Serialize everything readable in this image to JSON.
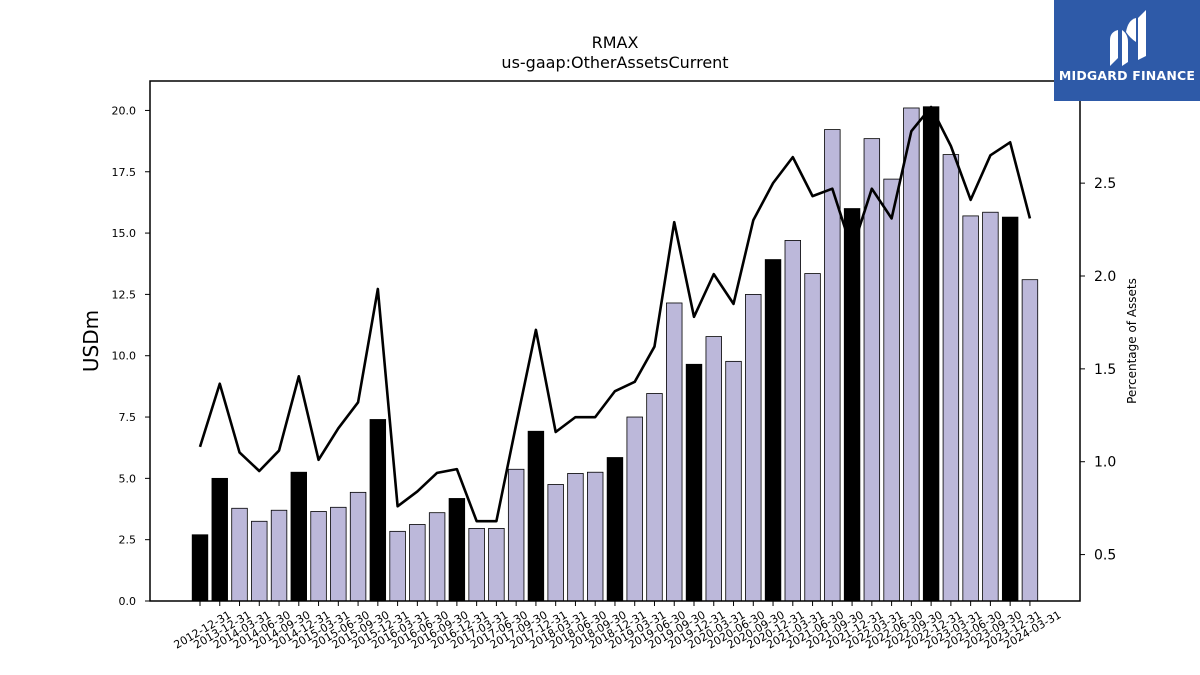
{
  "logo": {
    "text": "MIDGARD FINANCE"
  },
  "chart_data": {
    "type": "bar",
    "title": "RMAX",
    "subtitle": "us-gaap:OtherAssetsCurrent",
    "ylabel": "USDm",
    "y2label": "Percentage of Assets",
    "ylim": [
      0,
      21.2
    ],
    "y2lim": [
      0.25,
      3.05
    ],
    "yticks": [
      "0.0",
      "2.5",
      "5.0",
      "7.5",
      "10.0",
      "12.5",
      "15.0",
      "17.5",
      "20.0"
    ],
    "y2ticks": [
      "0.5",
      "1.0",
      "1.5",
      "2.0",
      "2.5"
    ],
    "categories": [
      "2012-12-31",
      "2013-12-31",
      "2014-03-31",
      "2014-06-30",
      "2014-09-30",
      "2014-12-31",
      "2015-03-31",
      "2015-06-30",
      "2015-09-30",
      "2015-12-31",
      "2016-03-31",
      "2016-06-30",
      "2016-09-30",
      "2016-12-31",
      "2017-03-31",
      "2017-06-30",
      "2017-09-30",
      "2017-12-31",
      "2018-03-31",
      "2018-06-30",
      "2018-09-30",
      "2018-12-31",
      "2019-03-31",
      "2019-06-30",
      "2019-09-30",
      "2019-12-31",
      "2020-03-31",
      "2020-06-30",
      "2020-09-30",
      "2020-12-31",
      "2021-03-31",
      "2021-06-30",
      "2021-09-30",
      "2021-12-31",
      "2022-03-31",
      "2022-06-30",
      "2022-09-30",
      "2022-12-31",
      "2023-03-31",
      "2023-06-30",
      "2023-09-30",
      "2023-12-31",
      "2024-03-31"
    ],
    "series": [
      {
        "type": "bar",
        "axis": "left",
        "values": [
          2.7,
          5.0,
          3.78,
          3.25,
          3.7,
          5.25,
          3.65,
          3.82,
          4.43,
          7.4,
          2.84,
          3.12,
          3.6,
          4.18,
          2.96,
          2.96,
          5.37,
          6.92,
          4.75,
          5.2,
          5.25,
          5.85,
          7.5,
          8.46,
          12.15,
          9.65,
          10.78,
          9.77,
          12.5,
          13.92,
          14.7,
          13.35,
          19.22,
          16.0,
          18.85,
          17.2,
          20.1,
          20.15,
          18.2,
          15.7,
          15.85,
          15.65,
          13.1
        ],
        "highlight": [
          true,
          true,
          false,
          false,
          false,
          true,
          false,
          false,
          false,
          true,
          false,
          false,
          false,
          true,
          false,
          false,
          false,
          true,
          false,
          false,
          false,
          true,
          false,
          false,
          false,
          true,
          false,
          false,
          false,
          true,
          false,
          false,
          false,
          true,
          false,
          false,
          false,
          true,
          false,
          false,
          false,
          true,
          false
        ]
      },
      {
        "type": "line",
        "axis": "right",
        "values": [
          1.08,
          1.42,
          1.05,
          0.95,
          1.06,
          1.46,
          1.01,
          1.18,
          1.32,
          1.93,
          0.76,
          0.84,
          0.94,
          0.96,
          0.68,
          0.68,
          1.2,
          1.71,
          1.16,
          1.24,
          1.24,
          1.38,
          1.43,
          1.62,
          2.29,
          1.78,
          2.01,
          1.85,
          2.3,
          2.5,
          2.64,
          2.43,
          2.47,
          2.14,
          2.47,
          2.31,
          2.78,
          2.91,
          2.7,
          2.41,
          2.65,
          2.72,
          2.31
        ]
      }
    ],
    "colors": {
      "bar": "#bcb8da",
      "bar_highlight": "#000000",
      "line": "#000000"
    },
    "grid": false,
    "legend": "none"
  }
}
